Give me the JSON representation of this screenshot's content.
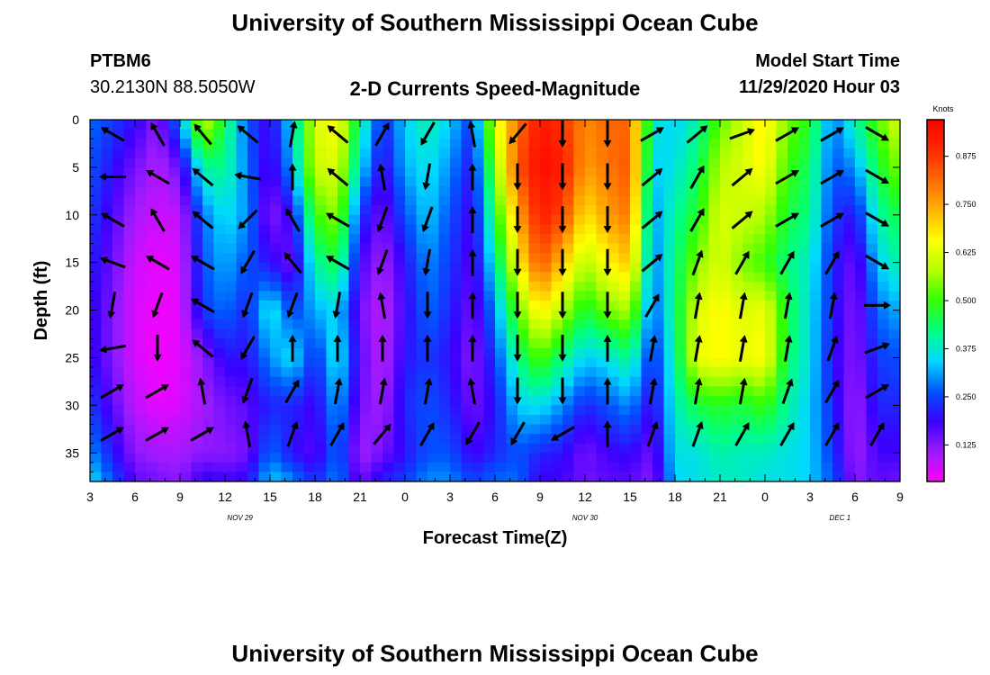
{
  "page": {
    "title_top": "University of Southern Mississippi Ocean Cube",
    "title_bottom": "University of Southern Mississippi Ocean Cube",
    "station": "PTBM6",
    "coords": "30.2130N 88.5050W",
    "chart_title": "2-D Currents Speed-Magnitude",
    "model_start_label": "Model Start Time",
    "model_start_value": "11/29/2020 Hour 03"
  },
  "colors": {
    "scale": [
      "#ff00ff",
      "#9b1bff",
      "#3a00ff",
      "#0055ff",
      "#00d8ff",
      "#00ff80",
      "#33ff00",
      "#b4ff00",
      "#ffff00",
      "#ffb400",
      "#ff6a00",
      "#ff2a00",
      "#ff0000"
    ],
    "arrow": "#000000"
  },
  "chart_data": {
    "type": "heatmap",
    "title": "2-D Currents Speed-Magnitude",
    "xlabel": "Forecast Time(Z)",
    "ylabel": "Depth (ft)",
    "x_tick_labels": [
      "3",
      "6",
      "9",
      "12",
      "15",
      "18",
      "21",
      "0",
      "3",
      "6",
      "9",
      "12",
      "15",
      "18",
      "21",
      "0",
      "3",
      "6",
      "9"
    ],
    "x_hours_range": [
      0,
      54
    ],
    "date_labels": [
      {
        "text": "NOV 29",
        "hour": 10
      },
      {
        "text": "NOV 30",
        "hour": 33
      },
      {
        "text": "DEC 1",
        "hour": 50
      }
    ],
    "y_ticks": [
      0,
      5,
      10,
      15,
      20,
      25,
      30,
      35
    ],
    "ylim": [
      0,
      38
    ],
    "colorbar": {
      "label": "Knots",
      "ticks": [
        "0.125",
        "0.250",
        "0.375",
        "0.500",
        "0.625",
        "0.750",
        "0.875"
      ],
      "tick_values": [
        0.125,
        0.25,
        0.375,
        0.5,
        0.625,
        0.75,
        0.875
      ],
      "range": [
        0.03,
        0.97
      ]
    },
    "speed_columns_hours": [
      0,
      3,
      4.5,
      6,
      7.5,
      9,
      10.5,
      12,
      13.5,
      15,
      16.5,
      18,
      19.5,
      21,
      22.5,
      24,
      25.5,
      27,
      28.5,
      30,
      31.5,
      33,
      34.5,
      36,
      37.5,
      39,
      40.5,
      42,
      43.5,
      45,
      46.5,
      48,
      49.5,
      51,
      52.5,
      54
    ],
    "speed_rows_depth_ft": [
      0,
      5,
      10,
      15,
      20,
      25,
      30,
      35,
      38
    ],
    "speed_knots": [
      [
        0.28,
        0.26,
        0.24,
        0.22,
        0.2,
        0.2,
        0.24,
        0.3,
        0.36
      ],
      [
        0.2,
        0.14,
        0.1,
        0.07,
        0.06,
        0.06,
        0.08,
        0.12,
        0.16
      ],
      [
        0.12,
        0.09,
        0.07,
        0.05,
        0.04,
        0.04,
        0.05,
        0.1,
        0.14
      ],
      [
        0.3,
        0.15,
        0.08,
        0.06,
        0.05,
        0.05,
        0.06,
        0.1,
        0.12
      ],
      [
        0.62,
        0.4,
        0.28,
        0.26,
        0.24,
        0.12,
        0.1,
        0.12,
        0.2
      ],
      [
        0.45,
        0.42,
        0.36,
        0.32,
        0.28,
        0.2,
        0.14,
        0.12,
        0.18
      ],
      [
        0.26,
        0.28,
        0.3,
        0.26,
        0.22,
        0.2,
        0.16,
        0.14,
        0.2
      ],
      [
        0.18,
        0.16,
        0.12,
        0.2,
        0.38,
        0.3,
        0.22,
        0.28,
        0.34
      ],
      [
        0.36,
        0.32,
        0.2,
        0.14,
        0.24,
        0.36,
        0.22,
        0.2,
        0.3
      ],
      [
        0.62,
        0.6,
        0.5,
        0.4,
        0.32,
        0.22,
        0.18,
        0.16,
        0.22
      ],
      [
        0.66,
        0.62,
        0.56,
        0.46,
        0.35,
        0.38,
        0.32,
        0.28,
        0.3
      ],
      [
        0.42,
        0.36,
        0.24,
        0.18,
        0.14,
        0.16,
        0.14,
        0.1,
        0.14
      ],
      [
        0.22,
        0.18,
        0.14,
        0.1,
        0.08,
        0.08,
        0.1,
        0.14,
        0.22
      ],
      [
        0.34,
        0.32,
        0.26,
        0.2,
        0.18,
        0.2,
        0.22,
        0.2,
        0.24
      ],
      [
        0.4,
        0.36,
        0.34,
        0.3,
        0.28,
        0.24,
        0.26,
        0.26,
        0.3
      ],
      [
        0.34,
        0.3,
        0.26,
        0.24,
        0.22,
        0.2,
        0.22,
        0.26,
        0.3
      ],
      [
        0.24,
        0.2,
        0.18,
        0.16,
        0.14,
        0.12,
        0.14,
        0.18,
        0.24
      ],
      [
        0.62,
        0.54,
        0.46,
        0.38,
        0.3,
        0.24,
        0.2,
        0.22,
        0.28
      ],
      [
        0.8,
        0.84,
        0.74,
        0.66,
        0.52,
        0.42,
        0.34,
        0.26,
        0.28
      ],
      [
        0.93,
        0.95,
        0.92,
        0.84,
        0.68,
        0.52,
        0.36,
        0.22,
        0.18
      ],
      [
        0.88,
        0.92,
        0.86,
        0.72,
        0.58,
        0.42,
        0.3,
        0.2,
        0.18
      ],
      [
        0.78,
        0.76,
        0.68,
        0.58,
        0.46,
        0.34,
        0.22,
        0.14,
        0.14
      ],
      [
        0.82,
        0.8,
        0.76,
        0.66,
        0.54,
        0.36,
        0.26,
        0.18,
        0.16
      ],
      [
        0.82,
        0.84,
        0.8,
        0.72,
        0.58,
        0.42,
        0.3,
        0.2,
        0.16
      ],
      [
        0.38,
        0.34,
        0.3,
        0.28,
        0.26,
        0.22,
        0.18,
        0.14,
        0.12
      ],
      [
        0.34,
        0.36,
        0.4,
        0.42,
        0.42,
        0.4,
        0.38,
        0.36,
        0.34
      ],
      [
        0.4,
        0.44,
        0.48,
        0.55,
        0.62,
        0.64,
        0.46,
        0.36,
        0.36
      ],
      [
        0.52,
        0.58,
        0.62,
        0.62,
        0.66,
        0.66,
        0.48,
        0.4,
        0.38
      ],
      [
        0.6,
        0.62,
        0.6,
        0.54,
        0.62,
        0.64,
        0.46,
        0.38,
        0.38
      ],
      [
        0.68,
        0.66,
        0.58,
        0.5,
        0.64,
        0.66,
        0.5,
        0.38,
        0.36
      ],
      [
        0.54,
        0.5,
        0.46,
        0.42,
        0.46,
        0.44,
        0.4,
        0.36,
        0.36
      ],
      [
        0.48,
        0.44,
        0.42,
        0.38,
        0.36,
        0.36,
        0.34,
        0.34,
        0.34
      ],
      [
        0.28,
        0.26,
        0.24,
        0.22,
        0.22,
        0.2,
        0.22,
        0.24,
        0.26
      ],
      [
        0.4,
        0.3,
        0.2,
        0.14,
        0.12,
        0.12,
        0.1,
        0.1,
        0.12
      ],
      [
        0.52,
        0.46,
        0.4,
        0.34,
        0.28,
        0.24,
        0.22,
        0.18,
        0.16
      ],
      [
        0.62,
        0.55,
        0.46,
        0.4,
        0.32,
        0.26,
        0.22,
        0.18,
        0.14
      ]
    ],
    "arrow_columns": [
      {
        "hour": 1.5,
        "angles_deg": [
          150,
          180,
          150,
          160,
          260,
          190,
          30,
          30
        ]
      },
      {
        "hour": 4.5,
        "angles_deg": [
          120,
          150,
          120,
          150,
          250,
          270,
          30,
          30
        ]
      },
      {
        "hour": 7.5,
        "angles_deg": [
          130,
          140,
          140,
          150,
          150,
          140,
          100,
          30
        ]
      },
      {
        "hour": 10.5,
        "angles_deg": [
          140,
          170,
          225,
          240,
          250,
          240,
          250,
          100
        ]
      },
      {
        "hour": 13.5,
        "angles_deg": [
          80,
          90,
          120,
          130,
          250,
          90,
          60,
          70
        ]
      },
      {
        "hour": 16.5,
        "angles_deg": [
          140,
          140,
          150,
          150,
          260,
          90,
          80,
          60
        ]
      },
      {
        "hour": 19.5,
        "angles_deg": [
          60,
          100,
          250,
          250,
          100,
          90,
          80,
          50
        ]
      },
      {
        "hour": 22.5,
        "angles_deg": [
          240,
          260,
          250,
          260,
          270,
          90,
          80,
          60
        ]
      },
      {
        "hour": 25.5,
        "angles_deg": [
          100,
          90,
          90,
          90,
          90,
          90,
          100,
          240
        ]
      },
      {
        "hour": 28.5,
        "angles_deg": [
          230,
          270,
          270,
          270,
          270,
          270,
          270,
          240
        ]
      },
      {
        "hour": 31.5,
        "angles_deg": [
          270,
          270,
          270,
          270,
          270,
          270,
          270,
          210
        ]
      },
      {
        "hour": 34.5,
        "angles_deg": [
          270,
          270,
          270,
          270,
          270,
          90,
          90,
          90
        ]
      },
      {
        "hour": 37.5,
        "angles_deg": [
          30,
          40,
          40,
          40,
          60,
          80,
          80,
          70
        ]
      },
      {
        "hour": 40.5,
        "angles_deg": [
          40,
          60,
          60,
          70,
          80,
          80,
          80,
          70
        ]
      },
      {
        "hour": 43.5,
        "angles_deg": [
          20,
          40,
          40,
          60,
          80,
          80,
          80,
          60
        ]
      },
      {
        "hour": 46.5,
        "angles_deg": [
          30,
          30,
          30,
          60,
          80,
          80,
          70,
          60
        ]
      },
      {
        "hour": 49.5,
        "angles_deg": [
          30,
          30,
          30,
          60,
          80,
          70,
          60,
          60
        ]
      },
      {
        "hour": 52.5,
        "angles_deg": [
          330,
          330,
          330,
          330,
          0,
          20,
          30,
          60
        ]
      }
    ]
  }
}
